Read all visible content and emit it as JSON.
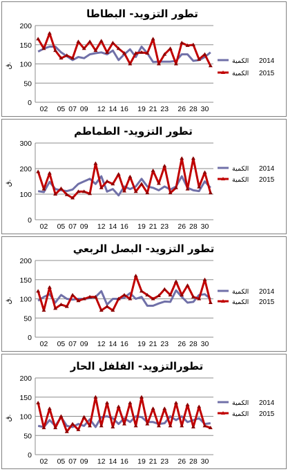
{
  "charts": [
    {
      "title": "تطور التزويد- البطاطا",
      "ylabel": "ق.",
      "ylim": [
        0,
        200
      ],
      "yticks": [
        0,
        50,
        100,
        150,
        200
      ],
      "legend": [
        {
          "year": "2014",
          "label": "الكمية",
          "color": "#7070a8"
        },
        {
          "year": "2015",
          "label": "الكمية",
          "color": "#c00000"
        }
      ]
    },
    {
      "title": "تطور التزويد- الطماطم",
      "ylabel": "ق.",
      "ylim": [
        0,
        300
      ],
      "yticks": [
        0,
        100,
        200,
        300
      ],
      "legend": [
        {
          "year": "2014",
          "label": "الكمية",
          "color": "#7070a8"
        },
        {
          "year": "2015",
          "label": "الكمية",
          "color": "#c00000"
        }
      ]
    },
    {
      "title": "تطور التزويد- البصل الربعي",
      "ylabel": "ق.",
      "ylim": [
        0,
        200
      ],
      "yticks": [
        0,
        50,
        100,
        150,
        200
      ],
      "legend": [
        {
          "year": "2014",
          "label": "الكمية",
          "color": "#7070a8"
        },
        {
          "year": "2015",
          "label": "الكمية",
          "color": "#c00000"
        }
      ]
    },
    {
      "title": "تطورالتزويد- الفلفل الحار",
      "ylabel": "ق.",
      "ylim": [
        0,
        200
      ],
      "yticks": [
        0,
        50,
        100,
        150,
        200
      ],
      "legend": [
        {
          "year": "2014",
          "label": "الكمية",
          "color": "#7070a8"
        },
        {
          "year": "2015",
          "label": "الكمية",
          "color": "#c00000"
        }
      ]
    }
  ],
  "chart_data": [
    {
      "type": "line",
      "x": [
        "01",
        "02",
        "03",
        "04",
        "05",
        "06",
        "07",
        "08",
        "09",
        "10",
        "11",
        "12",
        "13",
        "14",
        "15",
        "16",
        "17",
        "18",
        "19",
        "20",
        "21",
        "22",
        "23",
        "24",
        "25",
        "26",
        "27",
        "28",
        "29",
        "30",
        "31"
      ],
      "xticklabels": [
        "02",
        "05",
        "07",
        "09",
        "12",
        "14",
        "16",
        "19",
        "21",
        "23",
        "26",
        "28",
        "30"
      ],
      "series": [
        {
          "name": "2014 الكمية",
          "values": [
            132,
            140,
            145,
            145,
            130,
            120,
            110,
            118,
            115,
            125,
            128,
            130,
            125,
            135,
            110,
            125,
            138,
            118,
            145,
            128,
            105,
            106,
            106,
            106,
            108,
            125,
            125,
            108,
            110,
            118,
            130
          ]
        },
        {
          "name": "2015 الكمية",
          "values": [
            165,
            140,
            180,
            135,
            115,
            122,
            115,
            158,
            140,
            158,
            135,
            160,
            130,
            155,
            140,
            128,
            100,
            128,
            130,
            128,
            165,
            100,
            125,
            140,
            100,
            155,
            148,
            150,
            112,
            125,
            95
          ]
        }
      ]
    },
    {
      "type": "line",
      "x": [
        "01",
        "02",
        "03",
        "04",
        "05",
        "06",
        "07",
        "08",
        "09",
        "10",
        "11",
        "12",
        "13",
        "14",
        "15",
        "16",
        "17",
        "18",
        "19",
        "20",
        "21",
        "22",
        "23",
        "24",
        "25",
        "26",
        "27",
        "28",
        "29",
        "30",
        "31"
      ],
      "xticklabels": [
        "02",
        "05",
        "07",
        "09",
        "12",
        "14",
        "16",
        "19",
        "21",
        "23",
        "26",
        "28",
        "30"
      ],
      "series": [
        {
          "name": "2014 الكمية",
          "values": [
            112,
            108,
            148,
            120,
            115,
            112,
            118,
            140,
            150,
            160,
            140,
            170,
            110,
            120,
            95,
            130,
            120,
            130,
            160,
            130,
            125,
            115,
            130,
            118,
            130,
            170,
            125,
            115,
            112,
            150,
            125
          ]
        },
        {
          "name": "2015 الكمية",
          "values": [
            188,
            120,
            182,
            100,
            122,
            98,
            85,
            110,
            110,
            102,
            220,
            125,
            150,
            140,
            178,
            112,
            168,
            110,
            140,
            105,
            192,
            142,
            210,
            105,
            125,
            240,
            120,
            240,
            128,
            185,
            105
          ]
        }
      ]
    },
    {
      "type": "line",
      "x": [
        "01",
        "02",
        "03",
        "04",
        "05",
        "06",
        "07",
        "08",
        "09",
        "10",
        "11",
        "12",
        "13",
        "14",
        "15",
        "16",
        "17",
        "18",
        "19",
        "20",
        "21",
        "22",
        "23",
        "24",
        "25",
        "26",
        "27",
        "28",
        "29",
        "30",
        "31"
      ],
      "xticklabels": [
        "02",
        "05",
        "07",
        "09",
        "12",
        "14",
        "16",
        "19",
        "21",
        "23",
        "26",
        "28",
        "30"
      ],
      "series": [
        {
          "name": "2014 الكمية",
          "values": [
            95,
            105,
            112,
            90,
            110,
            100,
            98,
            100,
            100,
            102,
            105,
            120,
            85,
            100,
            100,
            103,
            115,
            100,
            105,
            82,
            82,
            88,
            93,
            92,
            122,
            105,
            90,
            92,
            110,
            112,
            100
          ]
        },
        {
          "name": "2015 الكمية",
          "values": [
            120,
            70,
            130,
            75,
            85,
            80,
            110,
            95,
            100,
            105,
            105,
            70,
            80,
            70,
            100,
            110,
            100,
            160,
            120,
            110,
            100,
            108,
            125,
            110,
            145,
            110,
            135,
            105,
            100,
            150,
            90
          ]
        }
      ]
    },
    {
      "type": "line",
      "x": [
        "01",
        "02",
        "03",
        "04",
        "05",
        "06",
        "07",
        "08",
        "09",
        "10",
        "11",
        "12",
        "13",
        "14",
        "15",
        "16",
        "17",
        "18",
        "19",
        "20",
        "21",
        "22",
        "23",
        "24",
        "25",
        "26",
        "27",
        "28",
        "29",
        "30",
        "31"
      ],
      "xticklabels": [
        "02",
        "05",
        "07",
        "09",
        "12",
        "14",
        "16",
        "19",
        "21",
        "23",
        "26",
        "28",
        "30"
      ],
      "series": [
        {
          "name": "2014 الكمية",
          "values": [
            75,
            72,
            90,
            75,
            98,
            75,
            72,
            80,
            75,
            92,
            72,
            98,
            100,
            95,
            80,
            95,
            85,
            100,
            98,
            85,
            85,
            80,
            82,
            100,
            90,
            100,
            85,
            90,
            95,
            80,
            82
          ]
        },
        {
          "name": "2015 الكمية",
          "values": [
            135,
            70,
            120,
            70,
            100,
            60,
            80,
            65,
            98,
            75,
            150,
            75,
            135,
            72,
            125,
            80,
            135,
            75,
            150,
            80,
            120,
            75,
            120,
            75,
            135,
            75,
            130,
            72,
            125,
            75,
            70
          ]
        }
      ]
    }
  ]
}
